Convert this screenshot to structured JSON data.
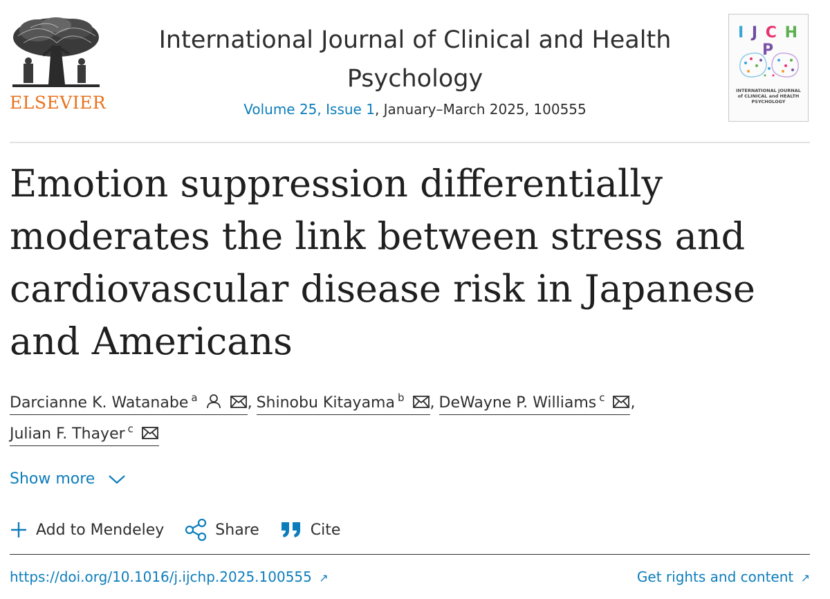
{
  "publisher": {
    "wordmark": "ELSEVIER",
    "wordmark_color": "#e9711c"
  },
  "journal": {
    "title": "International Journal of Clinical and Health Psychology",
    "volume_issue": "Volume 25, Issue 1",
    "issue_date": ", January–March 2025, 100555"
  },
  "cover": {
    "letters": [
      "I",
      "J",
      "C",
      "H",
      "P"
    ],
    "letter_colors": [
      "#3aa6d8",
      "#6d4ea1",
      "#e6356f",
      "#5bb04f",
      "#7a52a8"
    ],
    "subtitle_line1": "INTERNATIONAL JOURNAL",
    "subtitle_line2": "of CLINICAL and HEALTH",
    "subtitle_line3": "PSYCHOLOGY"
  },
  "article": {
    "title": "Emotion suppression differentially moderates the link between stress and cardiovascular disease risk in Japanese and Americans"
  },
  "authors": [
    {
      "name": "Darcianne K. Watanabe",
      "affiliation": "a",
      "has_profile_icon": true
    },
    {
      "name": "Shinobu Kitayama",
      "affiliation": "b",
      "has_profile_icon": false
    },
    {
      "name": "DeWayne P. Williams",
      "affiliation": "c",
      "has_profile_icon": false
    },
    {
      "name": "Julian F. Thayer",
      "affiliation": "c",
      "has_profile_icon": false
    }
  ],
  "author_separator": ",",
  "show_more": "Show more",
  "actions": {
    "mendeley": "Add to Mendeley",
    "share": "Share",
    "cite": "Cite"
  },
  "doi": {
    "text": "https://doi.org/10.1016/j.ijchp.2025.100555",
    "arrow": "↗"
  },
  "rights": {
    "text": "Get rights and content",
    "arrow": "↗"
  },
  "colors": {
    "link": "#0c7dbb",
    "text": "#2e2e2e",
    "divider": "#d9d9d9"
  }
}
